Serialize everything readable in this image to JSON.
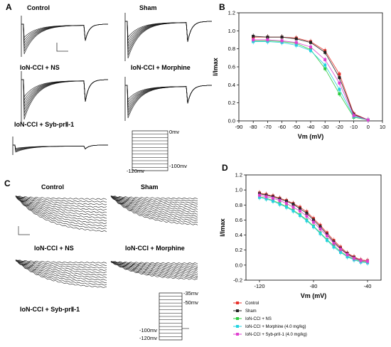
{
  "panels": {
    "A": "A",
    "B": "B",
    "C": "C",
    "D": "D"
  },
  "panel_a": {
    "labels": [
      "Control",
      "Sham",
      "IoN-CCI + NS",
      "IoN-CCI + Morphine",
      "IoN-CCI + Syb-prⅡ-1"
    ],
    "protocol": {
      "top": "0mv",
      "hold": "-120mv",
      "bottom": "-100mv"
    }
  },
  "panel_c": {
    "labels": [
      "Control",
      "Sham",
      "IoN-CCI + NS",
      "IoN-CCI + Morphine",
      "IoN-CCI + Syb-prⅡ-1"
    ],
    "protocol": {
      "top": "-35mv",
      "second": "-50mv",
      "third": "-100mv",
      "bottom": "-120mv"
    }
  },
  "legend": [
    {
      "label": "Control",
      "color": "#e8322b"
    },
    {
      "label": "Sham",
      "color": "#222222"
    },
    {
      "label": "IoN-CCI + NS",
      "color": "#2ecc40"
    },
    {
      "label": "IoN-CCI + Morphine (4.0 mg/kg)",
      "color": "#22d3e0"
    },
    {
      "label": "IoN-CCI + Syb-prII-1 (4.0 mg/kg)",
      "color": "#e040d0"
    }
  ],
  "chart_data": [
    {
      "type": "scatter",
      "panel": "B",
      "xlabel": "Vm (mV)",
      "ylabel": "I/Imax",
      "xlim": [
        -90,
        10
      ],
      "ylim": [
        0.0,
        1.2
      ],
      "xticks": [
        -90,
        -80,
        -70,
        -60,
        -50,
        -40,
        -30,
        -20,
        -10,
        0,
        10
      ],
      "yticks": [
        0.0,
        0.2,
        0.4,
        0.6,
        0.8,
        1.0,
        1.2
      ],
      "series": [
        {
          "name": "Control",
          "color": "#e8322b",
          "x": [
            -80,
            -70,
            -60,
            -50,
            -40,
            -30,
            -20,
            -10,
            0
          ],
          "y": [
            0.93,
            0.93,
            0.93,
            0.92,
            0.88,
            0.78,
            0.52,
            0.08,
            0.01
          ]
        },
        {
          "name": "Sham",
          "color": "#222222",
          "x": [
            -80,
            -70,
            -60,
            -50,
            -40,
            -30,
            -20,
            -10,
            0
          ],
          "y": [
            0.94,
            0.93,
            0.93,
            0.91,
            0.87,
            0.76,
            0.48,
            0.07,
            0.01
          ]
        },
        {
          "name": "IoN-CCI + NS",
          "color": "#2ecc40",
          "x": [
            -80,
            -70,
            -60,
            -50,
            -40,
            -30,
            -20,
            -10,
            0
          ],
          "y": [
            0.89,
            0.89,
            0.88,
            0.86,
            0.79,
            0.58,
            0.3,
            0.04,
            0.01
          ]
        },
        {
          "name": "IoN-CCI + Morphine (4.0 mg/kg)",
          "color": "#22d3e0",
          "x": [
            -80,
            -70,
            -60,
            -50,
            -40,
            -30,
            -20,
            -10,
            0
          ],
          "y": [
            0.88,
            0.88,
            0.87,
            0.84,
            0.78,
            0.62,
            0.35,
            0.05,
            0.01
          ]
        },
        {
          "name": "IoN-CCI + Syb-prII-1 (4.0 mg/kg)",
          "color": "#e040d0",
          "x": [
            -80,
            -70,
            -60,
            -50,
            -40,
            -30,
            -20,
            -10,
            0
          ],
          "y": [
            0.9,
            0.9,
            0.89,
            0.87,
            0.82,
            0.68,
            0.42,
            0.06,
            0.01
          ]
        }
      ]
    },
    {
      "type": "scatter",
      "panel": "D",
      "xlabel": "Vm (mV)",
      "ylabel": "I/Imax",
      "xlim": [
        -130,
        -30
      ],
      "ylim": [
        -0.2,
        1.2
      ],
      "xticks": [
        -120,
        -80,
        -40
      ],
      "yticks": [
        -0.2,
        0.0,
        0.2,
        0.4,
        0.6,
        0.8,
        1.0,
        1.2
      ],
      "series": [
        {
          "name": "Control",
          "color": "#e8322b",
          "x": [
            -120,
            -115,
            -110,
            -105,
            -100,
            -95,
            -90,
            -85,
            -80,
            -75,
            -70,
            -65,
            -60,
            -55,
            -50,
            -45,
            -40
          ],
          "y": [
            0.96,
            0.94,
            0.92,
            0.89,
            0.86,
            0.82,
            0.77,
            0.71,
            0.62,
            0.53,
            0.43,
            0.33,
            0.24,
            0.16,
            0.11,
            0.07,
            0.06
          ]
        },
        {
          "name": "Sham",
          "color": "#222222",
          "x": [
            -120,
            -115,
            -110,
            -105,
            -100,
            -95,
            -90,
            -85,
            -80,
            -75,
            -70,
            -65,
            -60,
            -55,
            -50,
            -45,
            -40
          ],
          "y": [
            0.95,
            0.93,
            0.91,
            0.88,
            0.85,
            0.81,
            0.75,
            0.69,
            0.6,
            0.51,
            0.41,
            0.31,
            0.22,
            0.15,
            0.1,
            0.06,
            0.05
          ]
        },
        {
          "name": "IoN-CCI + NS",
          "color": "#2ecc40",
          "x": [
            -120,
            -115,
            -110,
            -105,
            -100,
            -95,
            -90,
            -85,
            -80,
            -75,
            -70,
            -65,
            -60,
            -55,
            -50,
            -45,
            -40
          ],
          "y": [
            0.91,
            0.89,
            0.86,
            0.82,
            0.78,
            0.73,
            0.67,
            0.6,
            0.52,
            0.43,
            0.34,
            0.26,
            0.18,
            0.12,
            0.08,
            0.05,
            0.04
          ]
        },
        {
          "name": "IoN-CCI + Morphine (4.0 mg/kg)",
          "color": "#22d3e0",
          "x": [
            -120,
            -115,
            -110,
            -105,
            -100,
            -95,
            -90,
            -85,
            -80,
            -75,
            -70,
            -65,
            -60,
            -55,
            -50,
            -45,
            -40
          ],
          "y": [
            0.9,
            0.88,
            0.85,
            0.81,
            0.77,
            0.72,
            0.66,
            0.59,
            0.51,
            0.42,
            0.33,
            0.24,
            0.17,
            0.11,
            0.07,
            0.04,
            0.03
          ]
        },
        {
          "name": "IoN-CCI + Syb-prII-1 (4.0 mg/kg)",
          "color": "#e040d0",
          "x": [
            -120,
            -115,
            -110,
            -105,
            -100,
            -95,
            -90,
            -85,
            -80,
            -75,
            -70,
            -65,
            -60,
            -55,
            -50,
            -45,
            -40
          ],
          "y": [
            0.93,
            0.91,
            0.89,
            0.86,
            0.82,
            0.77,
            0.72,
            0.65,
            0.57,
            0.48,
            0.39,
            0.29,
            0.21,
            0.14,
            0.09,
            0.06,
            0.05
          ]
        }
      ]
    }
  ]
}
